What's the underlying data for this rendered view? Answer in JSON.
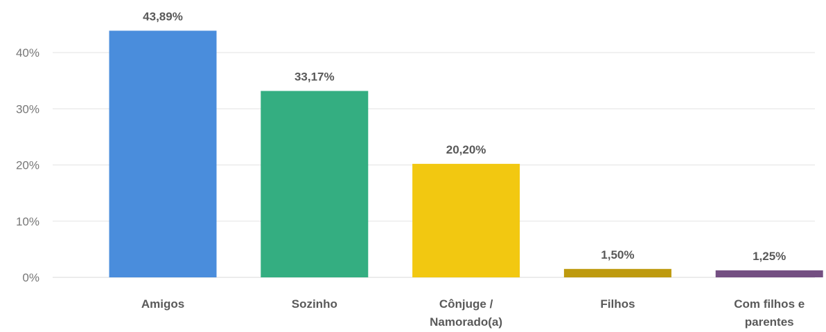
{
  "chart_data": {
    "type": "bar",
    "title": "",
    "xlabel": "",
    "ylabel": "",
    "categories": [
      [
        "Amigos"
      ],
      [
        "Sozinho"
      ],
      [
        "Cônjuge /",
        "Namorado(a)"
      ],
      [
        "Filhos"
      ],
      [
        "Com filhos e",
        "parentes"
      ]
    ],
    "values": [
      43.89,
      33.17,
      20.2,
      1.5,
      1.25
    ],
    "data_labels": [
      "43,89%",
      "33,17%",
      "20,20%",
      "1,50%",
      "1,25%"
    ],
    "colors": [
      "#4A8DDC",
      "#34AE81",
      "#F2C811",
      "#BE9A0F",
      "#744F82"
    ],
    "ylim": [
      0,
      40
    ],
    "y_ticks": [
      0,
      10,
      20,
      30,
      40
    ],
    "y_tick_labels": [
      "0%",
      "10%",
      "20%",
      "30%",
      "40%"
    ],
    "grid": true,
    "legend": "none"
  }
}
